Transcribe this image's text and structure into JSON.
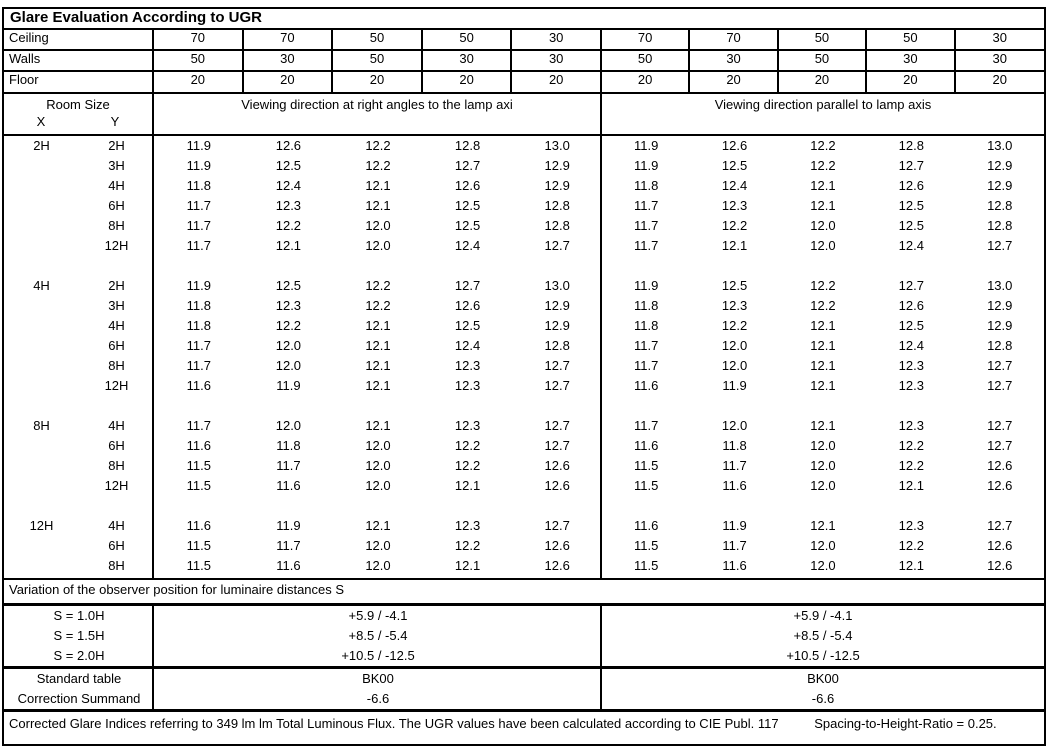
{
  "title": "Glare Evaluation According to UGR",
  "surface_rows": [
    {
      "label": "Ceiling",
      "values": [
        "70",
        "70",
        "50",
        "50",
        "30",
        "70",
        "70",
        "50",
        "50",
        "30"
      ]
    },
    {
      "label": "Walls",
      "values": [
        "50",
        "30",
        "50",
        "30",
        "30",
        "50",
        "30",
        "50",
        "30",
        "30"
      ]
    },
    {
      "label": "Floor",
      "values": [
        "20",
        "20",
        "20",
        "20",
        "20",
        "20",
        "20",
        "20",
        "20",
        "20"
      ]
    }
  ],
  "header": {
    "room_size": "Room Size",
    "x": "X",
    "y": "Y",
    "left_group": "Viewing direction at right angles to the lamp axi",
    "right_group": "Viewing direction parallel to lamp axis"
  },
  "blocks": [
    {
      "x": "2H",
      "rows": [
        {
          "y": "2H",
          "values": [
            "11.9",
            "12.6",
            "12.2",
            "12.8",
            "13.0",
            "11.9",
            "12.6",
            "12.2",
            "12.8",
            "13.0"
          ]
        },
        {
          "y": "3H",
          "values": [
            "11.9",
            "12.5",
            "12.2",
            "12.7",
            "12.9",
            "11.9",
            "12.5",
            "12.2",
            "12.7",
            "12.9"
          ]
        },
        {
          "y": "4H",
          "values": [
            "11.8",
            "12.4",
            "12.1",
            "12.6",
            "12.9",
            "11.8",
            "12.4",
            "12.1",
            "12.6",
            "12.9"
          ]
        },
        {
          "y": "6H",
          "values": [
            "11.7",
            "12.3",
            "12.1",
            "12.5",
            "12.8",
            "11.7",
            "12.3",
            "12.1",
            "12.5",
            "12.8"
          ]
        },
        {
          "y": "8H",
          "values": [
            "11.7",
            "12.2",
            "12.0",
            "12.5",
            "12.8",
            "11.7",
            "12.2",
            "12.0",
            "12.5",
            "12.8"
          ]
        },
        {
          "y": "12H",
          "values": [
            "11.7",
            "12.1",
            "12.0",
            "12.4",
            "12.7",
            "11.7",
            "12.1",
            "12.0",
            "12.4",
            "12.7"
          ]
        }
      ]
    },
    {
      "x": "4H",
      "rows": [
        {
          "y": "2H",
          "values": [
            "11.9",
            "12.5",
            "12.2",
            "12.7",
            "13.0",
            "11.9",
            "12.5",
            "12.2",
            "12.7",
            "13.0"
          ]
        },
        {
          "y": "3H",
          "values": [
            "11.8",
            "12.3",
            "12.2",
            "12.6",
            "12.9",
            "11.8",
            "12.3",
            "12.2",
            "12.6",
            "12.9"
          ]
        },
        {
          "y": "4H",
          "values": [
            "11.8",
            "12.2",
            "12.1",
            "12.5",
            "12.9",
            "11.8",
            "12.2",
            "12.1",
            "12.5",
            "12.9"
          ]
        },
        {
          "y": "6H",
          "values": [
            "11.7",
            "12.0",
            "12.1",
            "12.4",
            "12.8",
            "11.7",
            "12.0",
            "12.1",
            "12.4",
            "12.8"
          ]
        },
        {
          "y": "8H",
          "values": [
            "11.7",
            "12.0",
            "12.1",
            "12.3",
            "12.7",
            "11.7",
            "12.0",
            "12.1",
            "12.3",
            "12.7"
          ]
        },
        {
          "y": "12H",
          "values": [
            "11.6",
            "11.9",
            "12.1",
            "12.3",
            "12.7",
            "11.6",
            "11.9",
            "12.1",
            "12.3",
            "12.7"
          ]
        }
      ]
    },
    {
      "x": "8H",
      "rows": [
        {
          "y": "4H",
          "values": [
            "11.7",
            "12.0",
            "12.1",
            "12.3",
            "12.7",
            "11.7",
            "12.0",
            "12.1",
            "12.3",
            "12.7"
          ]
        },
        {
          "y": "6H",
          "values": [
            "11.6",
            "11.8",
            "12.0",
            "12.2",
            "12.7",
            "11.6",
            "11.8",
            "12.0",
            "12.2",
            "12.7"
          ]
        },
        {
          "y": "8H",
          "values": [
            "11.5",
            "11.7",
            "12.0",
            "12.2",
            "12.6",
            "11.5",
            "11.7",
            "12.0",
            "12.2",
            "12.6"
          ]
        },
        {
          "y": "12H",
          "values": [
            "11.5",
            "11.6",
            "12.0",
            "12.1",
            "12.6",
            "11.5",
            "11.6",
            "12.0",
            "12.1",
            "12.6"
          ]
        }
      ]
    },
    {
      "x": "12H",
      "rows": [
        {
          "y": "4H",
          "values": [
            "11.6",
            "11.9",
            "12.1",
            "12.3",
            "12.7",
            "11.6",
            "11.9",
            "12.1",
            "12.3",
            "12.7"
          ]
        },
        {
          "y": "6H",
          "values": [
            "11.5",
            "11.7",
            "12.0",
            "12.2",
            "12.6",
            "11.5",
            "11.7",
            "12.0",
            "12.2",
            "12.6"
          ]
        },
        {
          "y": "8H",
          "values": [
            "11.5",
            "11.6",
            "12.0",
            "12.1",
            "12.6",
            "11.5",
            "11.6",
            "12.0",
            "12.1",
            "12.6"
          ]
        }
      ]
    }
  ],
  "variation_title": "Variation of the observer position for luminaire distances S",
  "variation_rows": [
    {
      "label": "S = 1.0H",
      "left": "+5.9 / -4.1",
      "right": "+5.9 / -4.1"
    },
    {
      "label": "S = 1.5H",
      "left": "+8.5 / -5.4",
      "right": "+8.5 / -5.4"
    },
    {
      "label": "S = 2.0H",
      "left": "+10.5 / -12.5",
      "right": "+10.5 / -12.5"
    }
  ],
  "summary_rows": [
    {
      "label": "Standard table",
      "left": "BK00",
      "right": "BK00"
    },
    {
      "label": "Correction Summand",
      "left": "-6.6",
      "right": "-6.6"
    }
  ],
  "footer": {
    "main": "Corrected Glare Indices referring to 349 lm lm Total Luminous Flux. The UGR values have been calculated according to CIE Publ. 117",
    "ratio": "Spacing-to-Height-Ratio = 0.25."
  }
}
